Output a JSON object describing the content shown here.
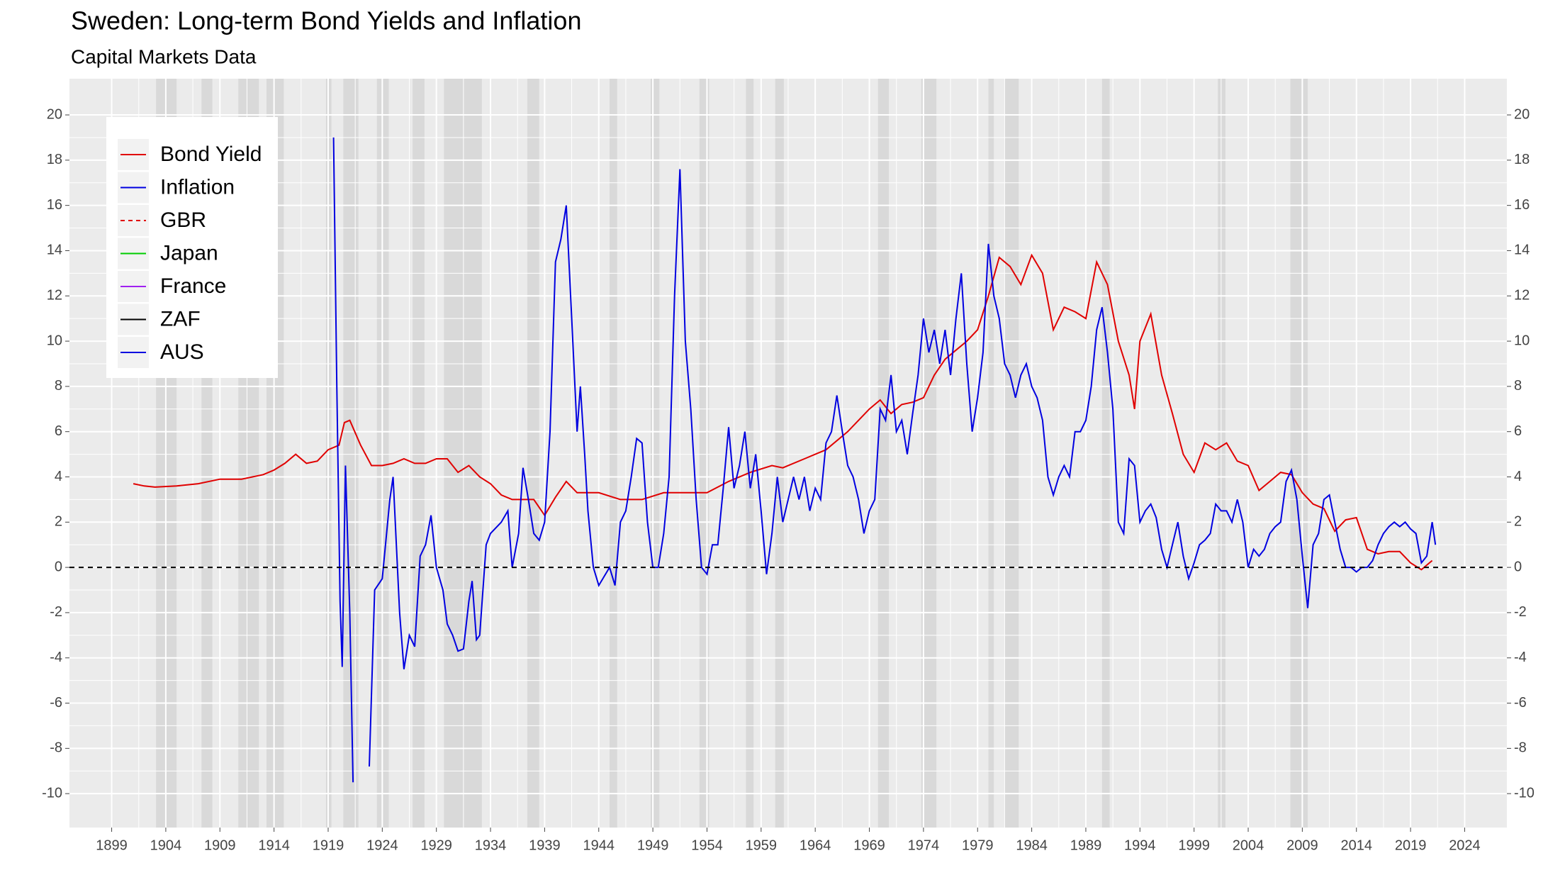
{
  "chart_data": {
    "type": "line",
    "title": "Sweden: Long-term Bond Yields and Inflation",
    "subtitle": "Capital Markets Data",
    "xlim": [
      1895.1,
      2027.9
    ],
    "xticks": [
      1899,
      1904,
      1909,
      1914,
      1919,
      1924,
      1929,
      1934,
      1939,
      1944,
      1949,
      1954,
      1959,
      1964,
      1969,
      1974,
      1979,
      1984,
      1989,
      1994,
      1999,
      2004,
      2009,
      2014,
      2019,
      2024
    ],
    "ylim": [
      -11.5,
      21.6
    ],
    "yticks": [
      -10,
      -8,
      -6,
      -4,
      -2,
      0,
      2,
      4,
      6,
      8,
      10,
      12,
      14,
      16,
      18,
      20
    ],
    "grid": true,
    "hline": 0,
    "legend_position": "top-left",
    "shaded_periods": [
      [
        1903.1,
        1905.0
      ],
      [
        1907.3,
        1908.3
      ],
      [
        1910.7,
        1912.6
      ],
      [
        1913.3,
        1914.9
      ],
      [
        1918.8,
        1919.3
      ],
      [
        1920.4,
        1921.8
      ],
      [
        1923.5,
        1924.6
      ],
      [
        1926.8,
        1927.9
      ],
      [
        1929.7,
        1933.2
      ],
      [
        1937.4,
        1938.5
      ],
      [
        1945.0,
        1945.7
      ],
      [
        1948.8,
        1949.6
      ],
      [
        1953.3,
        1954.2
      ],
      [
        1957.6,
        1958.3
      ],
      [
        1960.3,
        1961.1
      ],
      [
        1969.8,
        1970.8
      ],
      [
        1973.8,
        1975.2
      ],
      [
        1980.0,
        1980.5
      ],
      [
        1981.5,
        1982.8
      ],
      [
        1990.5,
        1991.2
      ],
      [
        2001.2,
        2001.9
      ],
      [
        2007.9,
        2009.5
      ]
    ],
    "series": [
      {
        "name": "Bond Yield",
        "color": "#e00000",
        "dash": "solid",
        "x": [
          1901,
          1902,
          1903,
          1905,
          1907,
          1909,
          1911,
          1913,
          1914,
          1915,
          1916,
          1917,
          1918,
          1919,
          1920,
          1920.5,
          1921,
          1922,
          1923,
          1924,
          1925,
          1926,
          1927,
          1928,
          1929,
          1930,
          1931,
          1932,
          1933,
          1934,
          1935,
          1936,
          1937,
          1938,
          1939,
          1940,
          1941,
          1942,
          1943,
          1944,
          1946,
          1948,
          1950,
          1952,
          1954,
          1956,
          1958,
          1960,
          1961,
          1963,
          1965,
          1967,
          1968,
          1969,
          1970,
          1971,
          1972,
          1973,
          1974,
          1975,
          1976,
          1977,
          1978,
          1979,
          1980,
          1981,
          1982,
          1983,
          1984,
          1985,
          1986,
          1987,
          1988,
          1989,
          1990,
          1991,
          1992,
          1993,
          1993.5,
          1994,
          1995,
          1996,
          1997,
          1998,
          1999,
          2000,
          2001,
          2002,
          2003,
          2004,
          2005,
          2006,
          2007,
          2008,
          2009,
          2010,
          2011,
          2012,
          2013,
          2014,
          2015,
          2016,
          2017,
          2018,
          2019,
          2020,
          2021
        ],
        "values": [
          3.7,
          3.6,
          3.55,
          3.6,
          3.7,
          3.9,
          3.9,
          4.1,
          4.3,
          4.6,
          5.0,
          4.6,
          4.7,
          5.2,
          5.4,
          6.4,
          6.5,
          5.4,
          4.5,
          4.5,
          4.6,
          4.8,
          4.6,
          4.6,
          4.8,
          4.8,
          4.2,
          4.5,
          4.0,
          3.7,
          3.2,
          3.0,
          3.0,
          3.0,
          2.3,
          3.1,
          3.8,
          3.3,
          3.3,
          3.3,
          3.0,
          3.0,
          3.3,
          3.3,
          3.3,
          3.8,
          4.2,
          4.5,
          4.4,
          4.8,
          5.2,
          6.0,
          6.5,
          7.0,
          7.4,
          6.8,
          7.2,
          7.3,
          7.5,
          8.5,
          9.2,
          9.6,
          10.0,
          10.5,
          12.0,
          13.7,
          13.3,
          12.5,
          13.8,
          13.0,
          10.5,
          11.5,
          11.3,
          11.0,
          13.5,
          12.5,
          10.0,
          8.5,
          7.0,
          10.0,
          11.2,
          8.5,
          6.8,
          5.0,
          4.2,
          5.5,
          5.2,
          5.5,
          4.7,
          4.5,
          3.4,
          3.8,
          4.2,
          4.1,
          3.3,
          2.8,
          2.6,
          1.6,
          2.1,
          2.2,
          0.8,
          0.6,
          0.7,
          0.7,
          0.2,
          -0.1,
          0.3
        ]
      },
      {
        "name": "Inflation",
        "color": "#0000e0",
        "dash": "solid",
        "x": [
          1919.5,
          1919.8,
          1920.1,
          1920.3,
          1920.6,
          1921.0,
          1921.3,
          1922.0,
          1922.8,
          1923.3,
          1924,
          1924.7,
          1925,
          1925.6,
          1926,
          1926.5,
          1927,
          1927.5,
          1928,
          1928.5,
          1929,
          1929.6,
          1930,
          1930.5,
          1931,
          1931.5,
          1932,
          1932.3,
          1932.7,
          1933,
          1933.6,
          1934,
          1935,
          1935.6,
          1936,
          1936.6,
          1937,
          1937.5,
          1938,
          1938.5,
          1939,
          1939.5,
          1940,
          1940.5,
          1941,
          1941.5,
          1942,
          1942.3,
          1942.7,
          1943,
          1943.5,
          1944,
          1945,
          1945.5,
          1946,
          1946.5,
          1947,
          1947.5,
          1948,
          1948.5,
          1949,
          1949.5,
          1950,
          1950.5,
          1951,
          1951.5,
          1952,
          1952.5,
          1953,
          1953.5,
          1954,
          1954.5,
          1955,
          1955.5,
          1956,
          1956.5,
          1957,
          1957.5,
          1958,
          1958.5,
          1959,
          1959.5,
          1960,
          1960.5,
          1961,
          1962,
          1962.5,
          1963,
          1963.5,
          1964,
          1964.5,
          1965,
          1965.5,
          1966,
          1966.5,
          1967,
          1967.5,
          1968,
          1968.5,
          1969,
          1969.5,
          1970,
          1970.5,
          1971,
          1971.5,
          1972,
          1972.5,
          1973,
          1973.5,
          1974,
          1974.5,
          1975,
          1975.5,
          1976,
          1976.5,
          1977,
          1977.5,
          1978,
          1978.5,
          1979,
          1979.5,
          1980,
          1980.5,
          1981,
          1981.5,
          1982,
          1982.5,
          1983,
          1983.5,
          1984,
          1984.5,
          1985,
          1985.5,
          1986,
          1986.5,
          1987,
          1987.5,
          1988,
          1988.5,
          1989,
          1989.5,
          1990,
          1990.5,
          1991,
          1991.5,
          1992,
          1992.5,
          1993,
          1993.5,
          1994,
          1994.5,
          1995,
          1995.5,
          1996,
          1996.5,
          1997,
          1997.5,
          1998,
          1998.5,
          1999,
          1999.5,
          2000,
          2000.5,
          2001,
          2001.5,
          2002,
          2002.5,
          2003,
          2003.5,
          2004,
          2004.5,
          2005,
          2005.5,
          2006,
          2006.5,
          2007,
          2007.5,
          2008,
          2008.5,
          2009,
          2009.5,
          2010,
          2010.5,
          2011,
          2011.5,
          2012,
          2012.5,
          2013,
          2013.5,
          2014,
          2014.5,
          2015,
          2015.5,
          2016,
          2016.5,
          2017,
          2017.5,
          2018,
          2018.5,
          2019,
          2019.5,
          2020,
          2020.5,
          2021,
          2021.3
        ],
        "values": [
          19.0,
          8.0,
          -1.5,
          -4.4,
          4.5,
          -2.0,
          -9.5,
          null,
          -8.8,
          -1.0,
          -0.5,
          3.0,
          4.0,
          -2.0,
          -4.5,
          -3.0,
          -3.5,
          0.5,
          1.0,
          2.3,
          0.0,
          -1.0,
          -2.5,
          -3.0,
          -3.7,
          -3.6,
          -1.5,
          -0.6,
          -3.2,
          -3.0,
          1.0,
          1.5,
          2.0,
          2.5,
          0.0,
          1.5,
          4.4,
          3.0,
          1.5,
          1.2,
          2.0,
          6.0,
          13.5,
          14.5,
          16.0,
          11.0,
          6.0,
          8.0,
          5.0,
          2.5,
          0.0,
          -0.8,
          0.0,
          -0.8,
          2.0,
          2.5,
          4.0,
          5.7,
          5.5,
          2.0,
          0.0,
          0.0,
          1.5,
          4.0,
          12.0,
          17.6,
          10.0,
          7.0,
          3.0,
          0.0,
          -0.3,
          1.0,
          1.0,
          3.5,
          6.2,
          3.5,
          4.5,
          6.0,
          3.5,
          5.0,
          2.5,
          -0.3,
          1.5,
          4.0,
          2.0,
          4.0,
          3.0,
          4.0,
          2.5,
          3.5,
          3.0,
          5.5,
          6.0,
          7.6,
          6.0,
          4.5,
          4.0,
          3.0,
          1.5,
          2.5,
          3.0,
          7.0,
          6.5,
          8.5,
          6.0,
          6.5,
          5.0,
          6.8,
          8.5,
          11.0,
          9.5,
          10.5,
          9.0,
          10.5,
          8.5,
          11.0,
          13.0,
          9.0,
          6.0,
          7.5,
          9.5,
          14.3,
          12.0,
          11.0,
          9.0,
          8.5,
          7.5,
          8.5,
          9.0,
          8.0,
          7.5,
          6.5,
          4.0,
          3.2,
          4.0,
          4.5,
          4.0,
          6.0,
          6.0,
          6.5,
          8.0,
          10.5,
          11.5,
          9.5,
          7.0,
          2.0,
          1.5,
          4.8,
          4.5,
          2.0,
          2.5,
          2.8,
          2.2,
          0.8,
          0.0,
          1.0,
          2.0,
          0.5,
          -0.5,
          0.2,
          1.0,
          1.2,
          1.5,
          2.8,
          2.5,
          2.5,
          2.0,
          3.0,
          2.0,
          0.0,
          0.8,
          0.5,
          0.8,
          1.5,
          1.8,
          2.0,
          3.8,
          4.3,
          3.0,
          0.5,
          -1.8,
          1.0,
          1.5,
          3.0,
          3.2,
          2.0,
          0.8,
          0.0,
          0.0,
          -0.2,
          0.0,
          0.0,
          0.3,
          1.0,
          1.5,
          1.8,
          2.0,
          1.8,
          2.0,
          1.7,
          1.5,
          0.2,
          0.5,
          2.0,
          1.0
        ]
      },
      {
        "name": "GBR",
        "color": "#e00000",
        "dash": "dashed",
        "x": [],
        "values": []
      },
      {
        "name": "Japan",
        "color": "#00cc00",
        "dash": "solid",
        "x": [],
        "values": []
      },
      {
        "name": "France",
        "color": "#a020f0",
        "dash": "solid",
        "x": [],
        "values": []
      },
      {
        "name": "ZAF",
        "color": "#000000",
        "dash": "solid",
        "x": [],
        "values": []
      },
      {
        "name": "AUS",
        "color": "#0000e0",
        "dash": "solid",
        "x": [],
        "values": []
      }
    ]
  }
}
